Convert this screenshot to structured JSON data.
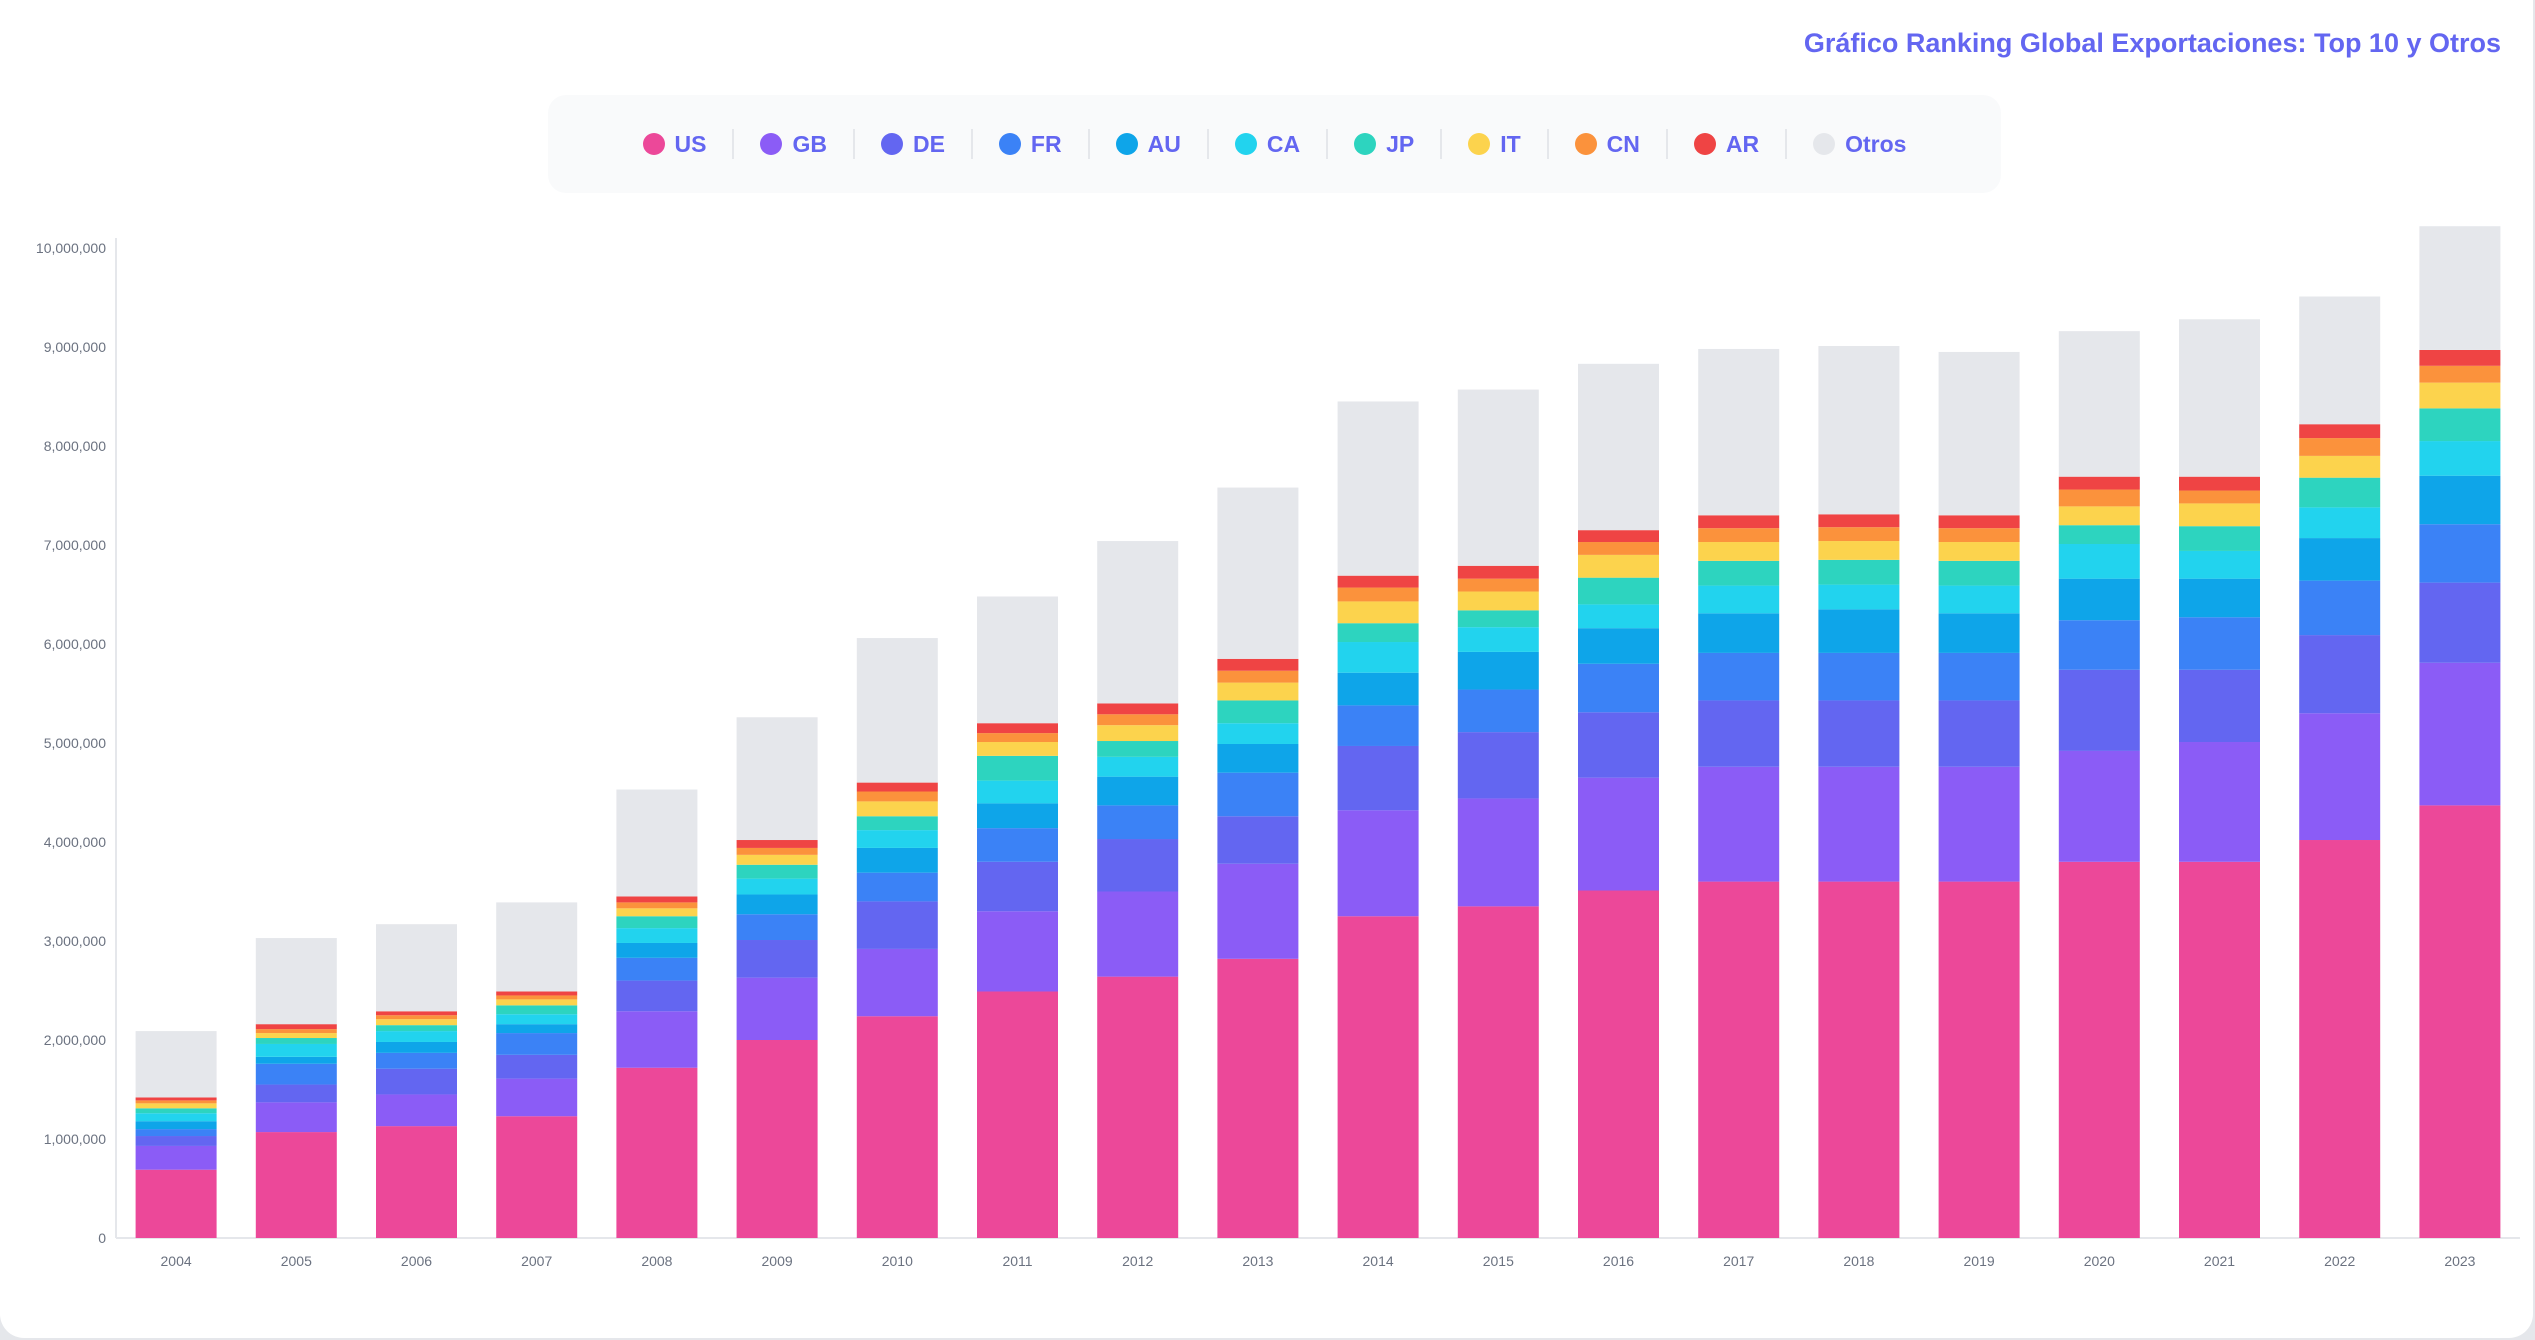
{
  "title": "Gráfico Ranking Global Exportaciones: Top 10 y Otros",
  "chart_data": {
    "type": "bar",
    "stacked": true,
    "title": "Gráfico Ranking Global Exportaciones: Top 10 y Otros",
    "xlabel": "",
    "ylabel": "",
    "ylim": [
      0,
      10000000
    ],
    "yticks": [
      "0",
      "1,000,000",
      "2,000,000",
      "3,000,000",
      "4,000,000",
      "5,000,000",
      "6,000,000",
      "7,000,000",
      "8,000,000",
      "9,000,000",
      "10,000,000"
    ],
    "legend_position": "top",
    "grid": false,
    "categories": [
      "2004",
      "2005",
      "2006",
      "2007",
      "2008",
      "2009",
      "2010",
      "2011",
      "2012",
      "2013",
      "2014",
      "2015",
      "2016",
      "2017",
      "2018",
      "2019",
      "2020",
      "2021",
      "2022",
      "2023"
    ],
    "series": [
      {
        "name": "US",
        "color": "#ec4899",
        "values": [
          690000,
          1070000,
          1130000,
          1230000,
          1720000,
          2000000,
          2240000,
          2490000,
          2640000,
          2820000,
          3250000,
          3350000,
          3510000,
          3600000,
          3600000,
          3600000,
          3800000,
          3800000,
          4020000,
          4370000
        ]
      },
      {
        "name": "GB",
        "color": "#8b5cf6",
        "values": [
          240000,
          300000,
          320000,
          380000,
          570000,
          630000,
          680000,
          810000,
          860000,
          960000,
          1070000,
          1090000,
          1140000,
          1160000,
          1160000,
          1160000,
          1120000,
          1210000,
          1280000,
          1440000
        ]
      },
      {
        "name": "DE",
        "color": "#6366f1",
        "values": [
          100000,
          180000,
          260000,
          240000,
          310000,
          380000,
          480000,
          500000,
          530000,
          480000,
          650000,
          670000,
          660000,
          670000,
          670000,
          670000,
          820000,
          730000,
          790000,
          810000
        ]
      },
      {
        "name": "FR",
        "color": "#3b82f6",
        "values": [
          70000,
          210000,
          160000,
          220000,
          230000,
          260000,
          290000,
          340000,
          340000,
          440000,
          410000,
          430000,
          490000,
          480000,
          480000,
          480000,
          500000,
          530000,
          550000,
          590000
        ]
      },
      {
        "name": "AU",
        "color": "#0ea5e9",
        "values": [
          80000,
          70000,
          110000,
          90000,
          150000,
          200000,
          250000,
          250000,
          290000,
          290000,
          330000,
          380000,
          360000,
          400000,
          440000,
          400000,
          420000,
          390000,
          430000,
          490000
        ]
      },
      {
        "name": "CA",
        "color": "#22d3ee",
        "values": [
          80000,
          130000,
          110000,
          100000,
          150000,
          160000,
          180000,
          230000,
          200000,
          210000,
          310000,
          250000,
          240000,
          280000,
          250000,
          280000,
          350000,
          280000,
          310000,
          350000
        ]
      },
      {
        "name": "JP",
        "color": "#2dd4bf",
        "values": [
          50000,
          60000,
          60000,
          90000,
          120000,
          140000,
          140000,
          250000,
          160000,
          230000,
          190000,
          170000,
          270000,
          250000,
          250000,
          250000,
          190000,
          250000,
          300000,
          330000
        ]
      },
      {
        "name": "IT",
        "color": "#fcd34d",
        "values": [
          50000,
          50000,
          60000,
          60000,
          80000,
          100000,
          150000,
          140000,
          160000,
          180000,
          220000,
          190000,
          230000,
          190000,
          190000,
          190000,
          190000,
          230000,
          220000,
          260000
        ]
      },
      {
        "name": "CN",
        "color": "#fb923c",
        "values": [
          30000,
          40000,
          40000,
          40000,
          60000,
          70000,
          100000,
          90000,
          110000,
          120000,
          140000,
          130000,
          130000,
          140000,
          140000,
          140000,
          170000,
          130000,
          180000,
          170000
        ]
      },
      {
        "name": "AR",
        "color": "#ef4444",
        "values": [
          30000,
          50000,
          40000,
          40000,
          60000,
          80000,
          90000,
          100000,
          110000,
          120000,
          120000,
          130000,
          120000,
          130000,
          130000,
          130000,
          130000,
          140000,
          140000,
          160000
        ]
      },
      {
        "name": "Otros",
        "color": "#e5e7eb",
        "values": [
          670000,
          870000,
          880000,
          900000,
          1080000,
          1240000,
          1460000,
          1280000,
          1640000,
          1730000,
          1760000,
          1780000,
          1680000,
          1680000,
          1700000,
          1650000,
          1470000,
          1590000,
          1290000,
          1250000
        ]
      }
    ]
  }
}
